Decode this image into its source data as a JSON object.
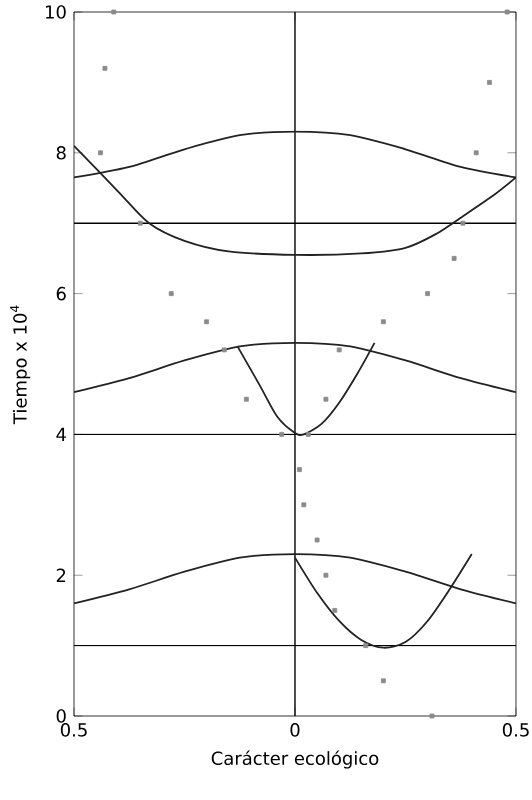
{
  "chart_data": {
    "type": "line",
    "xlabel": "Carácter ecológico",
    "ylabel": "Tiempo x 10$^{4}$",
    "xlim": [
      -0.5,
      0.5
    ],
    "ylim": [
      0,
      10
    ],
    "xticks": [
      {
        "value": -0.5,
        "label": "0.5"
      },
      0,
      0.5
    ],
    "yticks": [
      0,
      2,
      4,
      6,
      8,
      10
    ],
    "grid": false,
    "marker": "none",
    "line_style": "solid",
    "ref_lines": [
      {
        "axis": "y",
        "value": 7,
        "color": "#000000"
      },
      {
        "axis": "y",
        "value": 4,
        "color": "#000000"
      },
      {
        "axis": "y",
        "value": 1,
        "color": "#000000"
      },
      {
        "axis": "x",
        "value": 0,
        "color": "#000000"
      }
    ],
    "series": [
      {
        "color": "#222222",
        "x": [
          -0.5,
          -0.375,
          -0.25,
          -0.125,
          0,
          0.125,
          0.25,
          0.375,
          0.5
        ],
        "values": [
          7.65,
          7.8,
          8.05,
          8.25,
          8.3,
          8.25,
          8.05,
          7.8,
          7.65
        ]
      },
      {
        "color": "#222222",
        "x": [
          -0.5,
          -0.375,
          -0.25,
          -0.125,
          0,
          0.125,
          0.25,
          0.375,
          0.5
        ],
        "values": [
          4.6,
          4.8,
          5.05,
          5.25,
          5.3,
          5.25,
          5.05,
          4.8,
          4.6
        ]
      },
      {
        "color": "#222222",
        "x": [
          -0.5,
          -0.375,
          -0.25,
          -0.125,
          0,
          0.125,
          0.25,
          0.375,
          0.5
        ],
        "values": [
          1.6,
          1.8,
          2.05,
          2.25,
          2.3,
          2.25,
          2.05,
          1.8,
          1.6
        ]
      },
      {
        "color": "#222222",
        "x": [
          -0.5,
          -0.4,
          -0.33,
          -0.25,
          -0.15,
          0,
          0.15,
          0.25,
          0.32,
          0.38,
          0.45,
          0.5
        ],
        "values": [
          8.1,
          7.45,
          7.0,
          6.75,
          6.6,
          6.55,
          6.57,
          6.65,
          6.85,
          7.1,
          7.4,
          7.65
        ]
      },
      {
        "color": "#222222",
        "x": [
          -0.13,
          -0.08,
          -0.04,
          0,
          0.02,
          0.06,
          0.1,
          0.14,
          0.18
        ],
        "values": [
          5.25,
          4.7,
          4.25,
          4.02,
          4.0,
          4.15,
          4.45,
          4.85,
          5.3
        ]
      },
      {
        "color": "#222222",
        "x": [
          0,
          0.05,
          0.1,
          0.15,
          0.2,
          0.25,
          0.3,
          0.35,
          0.4
        ],
        "values": [
          2.25,
          1.75,
          1.35,
          1.08,
          0.97,
          1.05,
          1.35,
          1.8,
          2.3
        ]
      },
      {
        "type": "scatter",
        "color": "#8a8a8a",
        "marker": "square",
        "x": [
          0.31,
          0.2,
          0.16,
          0.09,
          0.07,
          0.05,
          0.02,
          0.01,
          0.03,
          0.07,
          0.1,
          0.2,
          0.3,
          0.36,
          0.38,
          0.41,
          0.44,
          0.48,
          -0.03,
          -0.11,
          -0.16,
          -0.2,
          -0.28,
          -0.35,
          -0.44,
          -0.43,
          -0.41
        ],
        "values": [
          0,
          0.5,
          1,
          1.5,
          2,
          2.5,
          3,
          3.5,
          4,
          4.5,
          5.2,
          5.6,
          6,
          6.5,
          7,
          8,
          9,
          10,
          4,
          4.5,
          5.2,
          5.6,
          6,
          7,
          8,
          9.2,
          10
        ]
      }
    ]
  }
}
